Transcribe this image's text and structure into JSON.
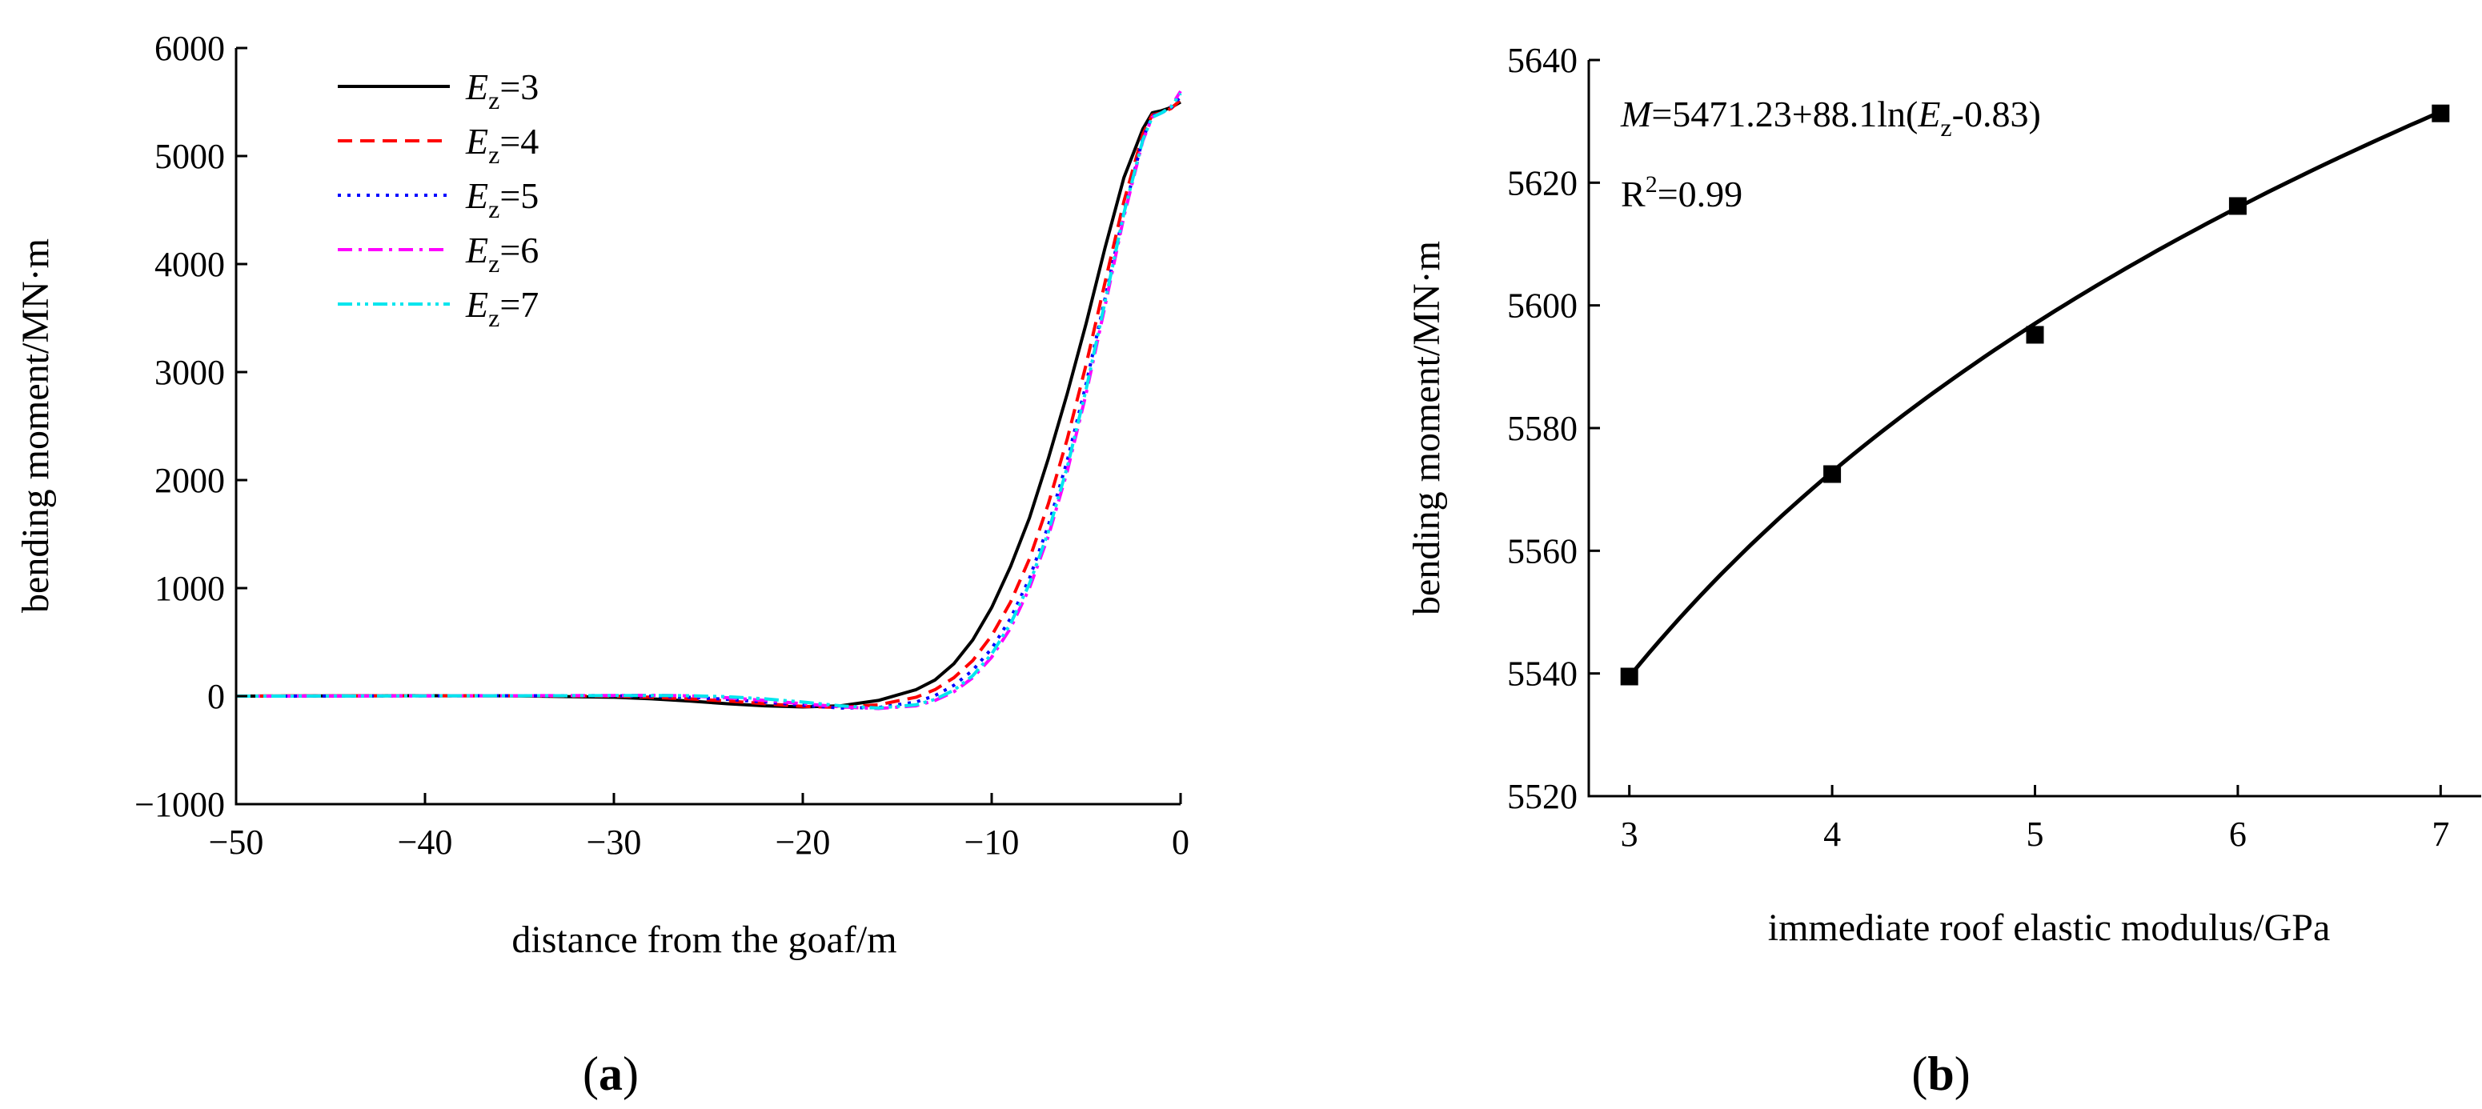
{
  "chart_data": [
    {
      "type": "line",
      "panel_label": "a",
      "xlabel": "distance from the goaf/m",
      "ylabel": "bending moment/MN·m",
      "xlim": [
        -50,
        0
      ],
      "ylim": [
        -1000,
        6000
      ],
      "xticks": [
        "−50",
        "−40",
        "−30",
        "−20",
        "−10",
        "0"
      ],
      "yticks": [
        "−1000",
        "0",
        "1000",
        "2000",
        "3000",
        "4000",
        "5000",
        "6000"
      ],
      "legend_position": "top-left",
      "series": [
        {
          "name": "Ez=3",
          "label_var": "E",
          "label_sub": "z",
          "label_value": "=3",
          "color": "#000000",
          "dash": "none",
          "x": [
            -50,
            -45,
            -40,
            -35,
            -30,
            -28,
            -26,
            -24,
            -22,
            -20,
            -18,
            -16,
            -14,
            -13,
            -12,
            -11,
            -10,
            -9,
            -8,
            -7,
            -6,
            -5,
            -4,
            -3,
            -2,
            -1.5,
            -1,
            -0.5,
            0
          ],
          "y": [
            0,
            2,
            4,
            2,
            -10,
            -25,
            -45,
            -70,
            -90,
            -100,
            -90,
            -40,
            60,
            150,
            300,
            520,
            820,
            1200,
            1650,
            2200,
            2800,
            3450,
            4150,
            4800,
            5250,
            5400,
            5420,
            5450,
            5500
          ]
        },
        {
          "name": "Ez=4",
          "label_var": "E",
          "label_sub": "z",
          "label_value": "=4",
          "color": "#ff0000",
          "dash": "18,10",
          "x": [
            -50,
            -45,
            -40,
            -35,
            -30,
            -28,
            -26,
            -24,
            -22,
            -20,
            -18,
            -16,
            -14,
            -13,
            -12,
            -11,
            -10,
            -9,
            -8,
            -7,
            -6,
            -5,
            -4,
            -3,
            -2,
            -1.5,
            -1,
            -0.5,
            0
          ],
          "y": [
            0,
            2,
            3,
            3,
            0,
            -10,
            -25,
            -45,
            -70,
            -95,
            -105,
            -80,
            -10,
            60,
            170,
            330,
            560,
            870,
            1270,
            1780,
            2380,
            3070,
            3830,
            4580,
            5200,
            5380,
            5400,
            5440,
            5520
          ]
        },
        {
          "name": "Ez=5",
          "label_var": "E",
          "label_sub": "z",
          "label_value": "=5",
          "color": "#0000ff",
          "dash": "4,8",
          "x": [
            -50,
            -45,
            -40,
            -35,
            -30,
            -28,
            -26,
            -24,
            -22,
            -20,
            -18,
            -16,
            -14,
            -13,
            -12,
            -11,
            -10,
            -9,
            -8,
            -7,
            -6,
            -5,
            -4,
            -3,
            -2,
            -1.5,
            -1,
            -0.5,
            0
          ],
          "y": [
            0,
            1,
            3,
            4,
            4,
            0,
            -10,
            -30,
            -55,
            -85,
            -110,
            -105,
            -55,
            5,
            100,
            240,
            440,
            720,
            1090,
            1580,
            2180,
            2890,
            3680,
            4480,
            5160,
            5370,
            5400,
            5450,
            5550
          ]
        },
        {
          "name": "Ez=6",
          "label_var": "E",
          "label_sub": "z",
          "label_value": "=6",
          "color": "#ff00ff",
          "dash": "18,8,4,8",
          "x": [
            -50,
            -45,
            -40,
            -35,
            -30,
            -28,
            -26,
            -24,
            -22,
            -20,
            -18,
            -16,
            -14,
            -13,
            -12,
            -11,
            -10,
            -9,
            -8,
            -7,
            -6,
            -5,
            -4,
            -3,
            -2,
            -1.5,
            -1,
            -0.5,
            0
          ],
          "y": [
            0,
            1,
            2,
            4,
            6,
            8,
            2,
            -15,
            -40,
            -70,
            -100,
            -115,
            -90,
            -40,
            40,
            170,
            360,
            630,
            1000,
            1480,
            2080,
            2800,
            3610,
            4440,
            5140,
            5360,
            5400,
            5460,
            5600
          ]
        },
        {
          "name": "Ez=7",
          "label_var": "E",
          "label_sub": "z",
          "label_value": "=7",
          "color": "#00e5ee",
          "dash": "18,6,4,6,4,6",
          "x": [
            -50,
            -45,
            -40,
            -35,
            -30,
            -28,
            -26,
            -24,
            -22,
            -20,
            -18,
            -16,
            -14,
            -13,
            -12,
            -11,
            -10,
            -9,
            -8,
            -7,
            -6,
            -5,
            -4,
            -3,
            -2,
            -1.5,
            -1,
            -0.5,
            0
          ],
          "y": [
            0,
            1,
            2,
            3,
            5,
            6,
            4,
            -5,
            -25,
            -55,
            -90,
            -110,
            -80,
            -30,
            55,
            190,
            390,
            670,
            1040,
            1520,
            2120,
            2840,
            3650,
            4470,
            5150,
            5360,
            5400,
            5455,
            5580
          ]
        }
      ]
    },
    {
      "type": "line",
      "panel_label": "b",
      "xlabel": "immediate roof elastic modulus/GPa",
      "ylabel": "bending moment/MN·m",
      "xlim": [
        2.8,
        7.2
      ],
      "ylim": [
        5520,
        5640
      ],
      "xticks": [
        "3",
        "4",
        "5",
        "6",
        "7"
      ],
      "yticks": [
        "5520",
        "5540",
        "5560",
        "5580",
        "5600",
        "5620",
        "5640"
      ],
      "annotation": {
        "equation_var": "M",
        "equation_mid": "=5471.23+88.1ln(",
        "equation_var2": "E",
        "equation_sub": "z",
        "equation_end": "-0.83)",
        "r2_base": "R",
        "r2_exp": "2",
        "r2_value": "=0.99"
      },
      "points": {
        "x": [
          3,
          4,
          5,
          6,
          7
        ],
        "y": [
          5539.5,
          5572.5,
          5595.2,
          5616.2,
          5631.3
        ]
      },
      "fit": {
        "a": 5471.23,
        "b": 88.1,
        "c": 0.83,
        "x_from": 3,
        "x_to": 7
      }
    }
  ]
}
